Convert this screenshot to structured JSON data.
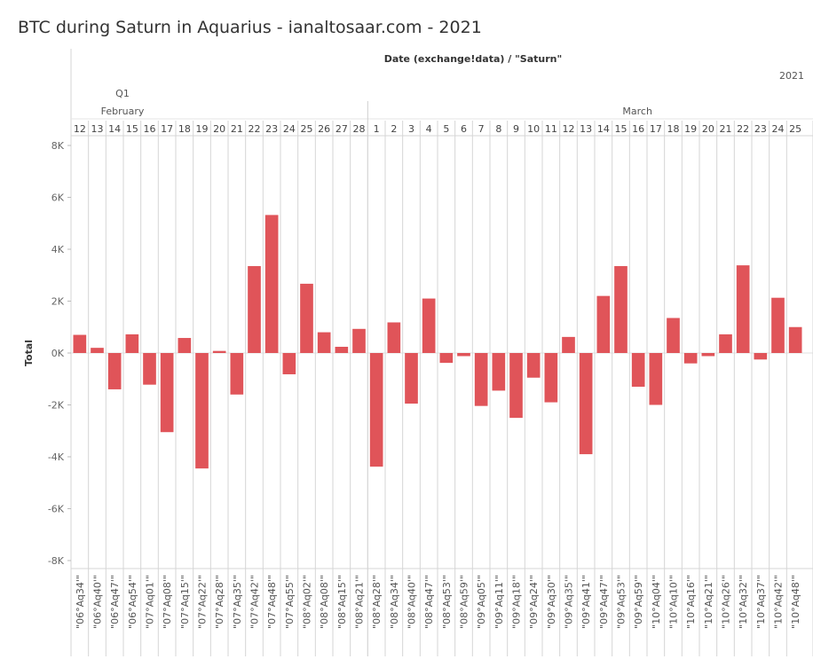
{
  "title": "BTC during Saturn in Aquarius - ianaltosaar.com - 2021",
  "header": {
    "field_caption": "Date (exchange!data)  /  \"Saturn\"",
    "year": "2021",
    "quarter": "Q1",
    "months": [
      "February",
      "March"
    ]
  },
  "chart_data": {
    "type": "bar",
    "days": [
      "12",
      "13",
      "14",
      "15",
      "16",
      "17",
      "18",
      "19",
      "20",
      "21",
      "22",
      "23",
      "24",
      "25",
      "26",
      "27",
      "28",
      "1",
      "2",
      "3",
      "4",
      "5",
      "6",
      "7",
      "8",
      "9",
      "10",
      "11",
      "12",
      "13",
      "14",
      "15",
      "16",
      "17",
      "18",
      "19",
      "20",
      "21",
      "22",
      "23",
      "24",
      "25"
    ],
    "months_of_days": [
      "February",
      "February",
      "February",
      "February",
      "February",
      "February",
      "February",
      "February",
      "February",
      "February",
      "February",
      "February",
      "February",
      "February",
      "February",
      "February",
      "February",
      "March",
      "March",
      "March",
      "March",
      "March",
      "March",
      "March",
      "March",
      "March",
      "March",
      "March",
      "March",
      "March",
      "March",
      "March",
      "March",
      "March",
      "March",
      "March",
      "March",
      "March",
      "March",
      "March",
      "March",
      "March"
    ],
    "categories": [
      "\"06°Aq34'\"",
      "\"06°Aq40'\"",
      "\"06°Aq47'\"",
      "\"06°Aq54'\"",
      "\"07°Aq01'\"",
      "\"07°Aq08'\"",
      "\"07°Aq15'\"",
      "\"07°Aq22'\"",
      "\"07°Aq28'\"",
      "\"07°Aq35'\"",
      "\"07°Aq42'\"",
      "\"07°Aq48'\"",
      "\"07°Aq55'\"",
      "\"08°Aq02'\"",
      "\"08°Aq08'\"",
      "\"08°Aq15'\"",
      "\"08°Aq21'\"",
      "\"08°Aq28'\"",
      "\"08°Aq34'\"",
      "\"08°Aq40'\"",
      "\"08°Aq47'\"",
      "\"08°Aq53'\"",
      "\"08°Aq59'\"",
      "\"09°Aq05'\"",
      "\"09°Aq11'\"",
      "\"09°Aq18'\"",
      "\"09°Aq24'\"",
      "\"09°Aq30'\"",
      "\"09°Aq35'\"",
      "\"09°Aq41'\"",
      "\"09°Aq47'\"",
      "\"09°Aq53'\"",
      "\"09°Aq59'\"",
      "\"10°Aq04'\"",
      "\"10°Aq10'\"",
      "\"10°Aq16'\"",
      "\"10°Aq21'\"",
      "\"10°Aq26'\"",
      "\"10°Aq32'\"",
      "\"10°Aq37'\"",
      "\"10°Aq42'\"",
      "\"10°Aq48'\""
    ],
    "values": [
      700,
      200,
      -1400,
      720,
      -1220,
      -3050,
      580,
      -4450,
      80,
      -1600,
      3350,
      5320,
      -820,
      2670,
      800,
      240,
      930,
      -4380,
      1180,
      -1950,
      2100,
      -380,
      -120,
      -2040,
      -1450,
      -2500,
      -950,
      -1900,
      620,
      -3900,
      2200,
      3350,
      -1300,
      -2000,
      1350,
      -400,
      -120,
      720,
      3380,
      -250,
      2130,
      1000
    ],
    "ylabel": "Total",
    "ylim": [
      -8000,
      8000
    ],
    "yticks": [
      8000,
      6000,
      4000,
      2000,
      0,
      -2000,
      -4000,
      -6000,
      -8000
    ],
    "ytick_labels": [
      "8K",
      "6K",
      "4K",
      "2K",
      "0K",
      "-2K",
      "-4K",
      "-6K",
      "-8K"
    ],
    "bar_color": "#e05459",
    "grid": true
  }
}
